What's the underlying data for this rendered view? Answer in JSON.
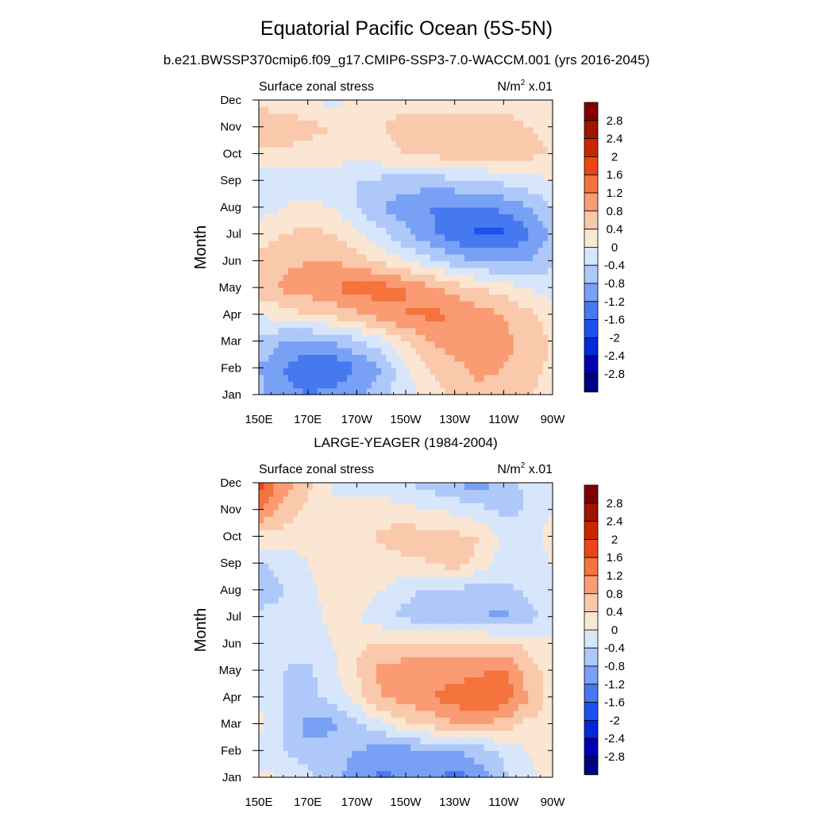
{
  "figure": {
    "title": "Equatorial Pacific Ocean (5S-5N)"
  },
  "palette": [
    "#000080",
    "#0000b0",
    "#0028dc",
    "#1e50f0",
    "#4678f0",
    "#78a0f5",
    "#afc8fa",
    "#d7e6fa",
    "#fae6d2",
    "#fac8aa",
    "#fa9b73",
    "#f5733c",
    "#eb4614",
    "#c82800",
    "#a01400",
    "#800000"
  ],
  "colorbar_labels": [
    "-2.8",
    "-2.4",
    "-2",
    "-1.6",
    "-1.2",
    "-0.8",
    "-0.4",
    "0",
    "0.4",
    "0.8",
    "1.2",
    "1.6",
    "2",
    "2.4",
    "2.8"
  ],
  "chart_data": [
    {
      "type": "heatmap",
      "title": "b.e21.BWSSP370cmip6.f09_g17.CMIP6-SSP3-7.0-WACCM.001 (yrs 2016-2045)",
      "left_label": "Surface zonal stress",
      "units": "N/m",
      "units_sup": "2",
      "units_scale": " x.01",
      "ylabel": "Month",
      "x_ticks": [
        "150E",
        "170E",
        "170W",
        "150W",
        "130W",
        "110W",
        "90W"
      ],
      "y_ticks": [
        "Jan",
        "Feb",
        "Mar",
        "Apr",
        "May",
        "Jun",
        "Jul",
        "Aug",
        "Sep",
        "Oct",
        "Nov",
        "Dec"
      ],
      "xlim_lon": [
        150,
        270
      ],
      "levels": [
        -2.8,
        -2.4,
        -2.0,
        -1.6,
        -1.2,
        -0.8,
        -0.4,
        0,
        0.4,
        0.8,
        1.2,
        1.6,
        2.0,
        2.4,
        2.8
      ],
      "lon": [
        150,
        160,
        170,
        180,
        190,
        200,
        210,
        220,
        230,
        240,
        250,
        260,
        270
      ],
      "months": [
        "Jan",
        "Feb",
        "Mar",
        "Apr",
        "May",
        "Jun",
        "Jul",
        "Aug",
        "Sep",
        "Oct",
        "Nov",
        "Dec"
      ],
      "values": [
        [
          -0.7,
          -1.0,
          -1.2,
          -1.1,
          -0.9,
          -0.5,
          -0.2,
          0.2,
          0.5,
          0.7,
          0.6,
          0.4,
          0.2
        ],
        [
          -0.8,
          -1.2,
          -1.6,
          -1.5,
          -1.2,
          -0.8,
          -0.1,
          0.4,
          0.7,
          0.9,
          0.8,
          0.6,
          0.3
        ],
        [
          -0.5,
          -0.8,
          -0.9,
          -0.8,
          -0.5,
          -0.1,
          0.4,
          0.8,
          1.0,
          1.0,
          0.9,
          0.7,
          0.3
        ],
        [
          0.0,
          0.2,
          0.4,
          0.5,
          0.7,
          1.0,
          1.2,
          1.3,
          1.2,
          1.0,
          0.8,
          0.5,
          0.2
        ],
        [
          0.6,
          0.9,
          1.0,
          1.2,
          1.4,
          1.4,
          1.2,
          0.9,
          0.6,
          0.4,
          0.2,
          0.0,
          -0.2
        ],
        [
          0.5,
          0.7,
          0.8,
          0.8,
          0.6,
          0.3,
          0.0,
          -0.3,
          -0.6,
          -0.8,
          -0.9,
          -0.8,
          -0.5
        ],
        [
          0.2,
          0.4,
          0.5,
          0.4,
          0.1,
          -0.3,
          -0.7,
          -1.1,
          -1.5,
          -1.7,
          -1.7,
          -1.3,
          -0.7
        ],
        [
          -0.2,
          0.0,
          0.1,
          0.0,
          -0.4,
          -0.8,
          -1.0,
          -1.2,
          -1.3,
          -1.3,
          -1.1,
          -0.8,
          -0.4
        ],
        [
          -0.3,
          -0.2,
          -0.2,
          -0.3,
          -0.4,
          -0.5,
          -0.6,
          -0.6,
          -0.5,
          -0.4,
          -0.3,
          -0.2,
          0.0
        ],
        [
          0.3,
          0.3,
          0.3,
          0.2,
          0.2,
          0.3,
          0.4,
          0.5,
          0.6,
          0.6,
          0.6,
          0.5,
          0.4
        ],
        [
          0.8,
          0.6,
          0.5,
          0.4,
          0.4,
          0.4,
          0.5,
          0.5,
          0.5,
          0.5,
          0.5,
          0.4,
          0.3
        ],
        [
          0.2,
          0.2,
          0.1,
          -0.2,
          0.1,
          0.3,
          0.3,
          0.3,
          0.3,
          0.3,
          0.3,
          0.3,
          0.3
        ]
      ]
    },
    {
      "type": "heatmap",
      "title": "LARGE-YEAGER (1984-2004)",
      "left_label": "Surface zonal stress",
      "units": "N/m",
      "units_sup": "2",
      "units_scale": " x.01",
      "ylabel": "Month",
      "x_ticks": [
        "150E",
        "170E",
        "170W",
        "150W",
        "130W",
        "110W",
        "90W"
      ],
      "y_ticks": [
        "Jan",
        "Feb",
        "Mar",
        "Apr",
        "May",
        "Jun",
        "Jul",
        "Aug",
        "Sep",
        "Oct",
        "Nov",
        "Dec"
      ],
      "xlim_lon": [
        150,
        270
      ],
      "levels": [
        -2.8,
        -2.4,
        -2.0,
        -1.6,
        -1.2,
        -0.8,
        -0.4,
        0,
        0.4,
        0.8,
        1.2,
        1.6,
        2.0,
        2.4,
        2.8
      ],
      "lon": [
        150,
        160,
        170,
        180,
        190,
        200,
        210,
        220,
        230,
        240,
        250,
        260,
        270
      ],
      "months": [
        "Jan",
        "Feb",
        "Mar",
        "Apr",
        "May",
        "Jun",
        "Jul",
        "Aug",
        "Sep",
        "Oct",
        "Nov",
        "Dec"
      ],
      "values": [
        [
          0.1,
          0.0,
          -0.3,
          -0.7,
          -1.0,
          -1.3,
          -1.1,
          -1.0,
          -1.4,
          -1.0,
          -0.5,
          -0.1,
          0.2
        ],
        [
          -0.2,
          -0.4,
          -0.6,
          -0.6,
          -0.8,
          -1.0,
          -1.0,
          -0.8,
          -0.8,
          -0.6,
          -0.3,
          0.0,
          0.2
        ],
        [
          0.1,
          -0.4,
          -1.0,
          -0.9,
          -0.5,
          -0.1,
          0.3,
          0.5,
          0.8,
          0.8,
          0.6,
          0.3,
          0.2
        ],
        [
          0.0,
          -0.4,
          -0.5,
          -0.3,
          0.2,
          0.8,
          1.0,
          1.2,
          1.4,
          1.6,
          1.5,
          0.8,
          0.2
        ],
        [
          -0.2,
          -0.4,
          -0.5,
          -0.1,
          0.4,
          0.9,
          1.0,
          1.0,
          1.0,
          1.1,
          1.3,
          0.6,
          0.2
        ],
        [
          -0.1,
          -0.3,
          -0.2,
          0.0,
          0.3,
          0.5,
          0.5,
          0.5,
          0.5,
          0.5,
          0.5,
          0.3,
          0.1
        ],
        [
          -0.2,
          -0.3,
          -0.2,
          0.1,
          0.0,
          -0.3,
          -0.5,
          -0.6,
          -0.7,
          -0.8,
          -0.9,
          -0.6,
          -0.2
        ],
        [
          -0.8,
          -0.4,
          -0.1,
          0.2,
          0.3,
          0.0,
          -0.3,
          -0.5,
          -0.5,
          -0.6,
          -0.5,
          -0.3,
          -0.1
        ],
        [
          -0.5,
          -0.2,
          0.0,
          0.2,
          0.2,
          0.2,
          0.3,
          0.4,
          0.6,
          0.3,
          -0.2,
          -0.2,
          0.0
        ],
        [
          0.3,
          0.2,
          0.1,
          0.1,
          0.2,
          0.5,
          0.6,
          0.6,
          0.5,
          0.4,
          -0.1,
          -0.2,
          0.2
        ],
        [
          1.2,
          0.7,
          0.3,
          0.0,
          0.1,
          0.2,
          0.1,
          0.0,
          -0.1,
          -0.3,
          -0.5,
          -0.4,
          0.0
        ],
        [
          1.8,
          1.0,
          0.5,
          0.0,
          -0.1,
          -0.2,
          -0.4,
          -0.6,
          -0.8,
          -1.0,
          -0.6,
          -0.3,
          0.0
        ]
      ]
    }
  ]
}
